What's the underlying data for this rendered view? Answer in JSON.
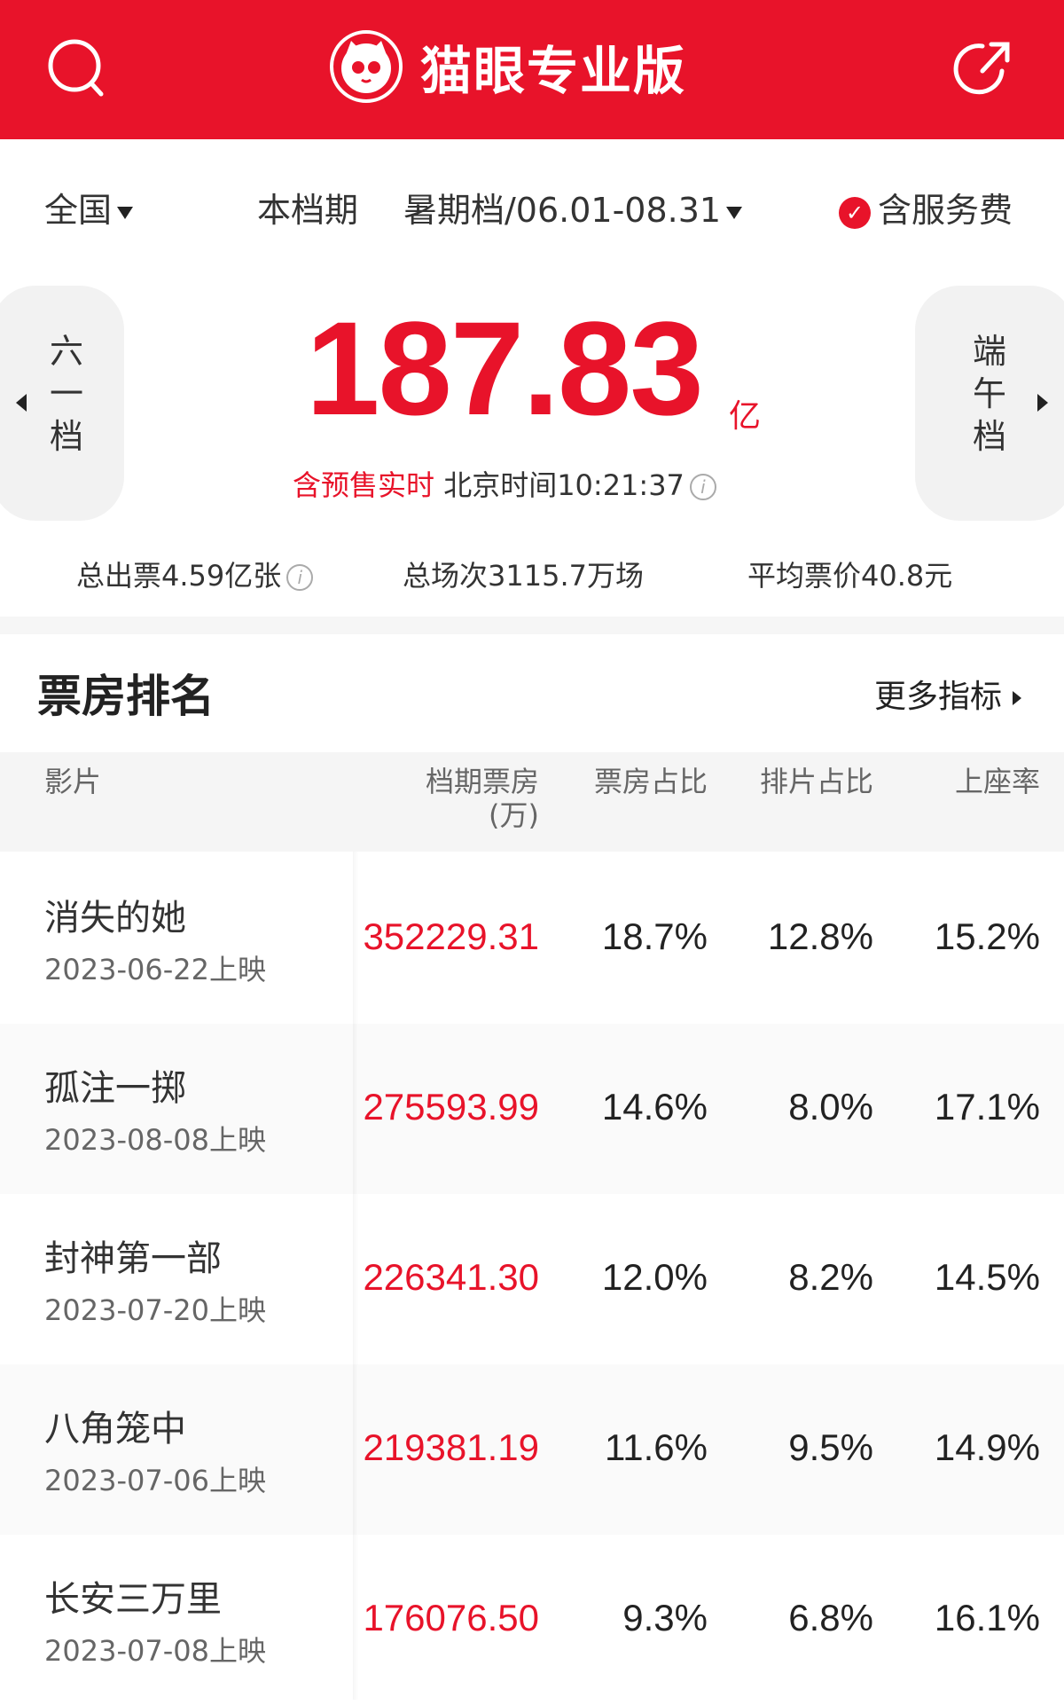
{
  "header": {
    "title": "猫眼专业版",
    "search_icon": "search-icon",
    "share_icon": "share-icon",
    "brand_color": "#e8132a"
  },
  "filter": {
    "region": "全国",
    "period_label": "本档期",
    "period_value": "暑期档/06.01-08.31",
    "service_fee": "含服务费",
    "service_fee_checked": true
  },
  "summary": {
    "prev_period": "六一档",
    "next_period": "端午档",
    "total": "187.83",
    "unit": "亿",
    "presale_note": "含预售实时",
    "time_label": "北京时间10:21:37"
  },
  "stats": {
    "tickets": "总出票4.59亿张",
    "shows": "总场次3115.7万场",
    "avg_price": "平均票价40.8元"
  },
  "ranking": {
    "title": "票房排名",
    "more": "更多指标",
    "columns": [
      "影片",
      "档期票房\n(万)",
      "票房占比",
      "排片占比",
      "上座率"
    ],
    "col_film": "影片",
    "col_bo": "档期票房",
    "col_bo_unit": "(万)",
    "col_share": "票房占比",
    "col_sched": "排片占比",
    "col_seat": "上座率",
    "rows": [
      {
        "name": "消失的她",
        "date": "2023-06-22上映",
        "box_office": "352229.31",
        "share": "18.7%",
        "schedule": "12.8%",
        "seat": "15.2%"
      },
      {
        "name": "孤注一掷",
        "date": "2023-08-08上映",
        "box_office": "275593.99",
        "share": "14.6%",
        "schedule": "8.0%",
        "seat": "17.1%"
      },
      {
        "name": "封神第一部",
        "date": "2023-07-20上映",
        "box_office": "226341.30",
        "share": "12.0%",
        "schedule": "8.2%",
        "seat": "14.5%"
      },
      {
        "name": "八角笼中",
        "date": "2023-07-06上映",
        "box_office": "219381.19",
        "share": "11.6%",
        "schedule": "9.5%",
        "seat": "14.9%"
      },
      {
        "name": "长安三万里",
        "date": "2023-07-08上映",
        "box_office": "176076.50",
        "share": "9.3%",
        "schedule": "6.8%",
        "seat": "16.1%"
      }
    ]
  }
}
